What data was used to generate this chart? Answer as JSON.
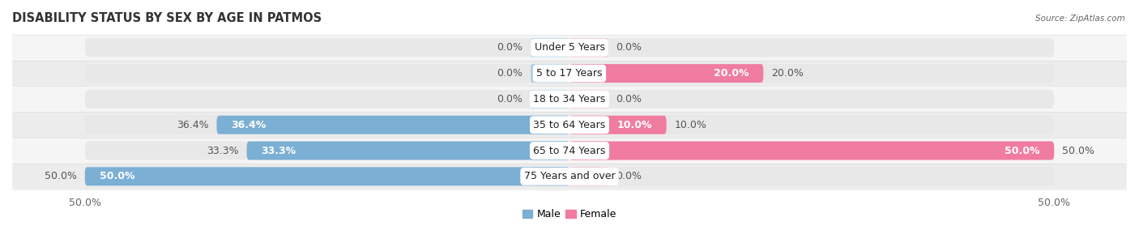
{
  "title": "DISABILITY STATUS BY SEX BY AGE IN PATMOS",
  "source": "Source: ZipAtlas.com",
  "categories": [
    "Under 5 Years",
    "5 to 17 Years",
    "18 to 34 Years",
    "35 to 64 Years",
    "65 to 74 Years",
    "75 Years and over"
  ],
  "male_values": [
    0.0,
    0.0,
    0.0,
    36.4,
    33.3,
    50.0
  ],
  "female_values": [
    0.0,
    20.0,
    0.0,
    10.0,
    50.0,
    0.0
  ],
  "male_color": "#7bafd4",
  "female_color": "#f07ca0",
  "male_stub_color": "#aecde3",
  "female_stub_color": "#f5b8cc",
  "bar_bg_color": "#e8e8e8",
  "max_val": 50.0,
  "bg_color": "#ffffff",
  "bar_height": 0.72,
  "stub_size": 4.0,
  "title_fontsize": 10.5,
  "label_fontsize": 9,
  "cat_fontsize": 9,
  "tick_fontsize": 9,
  "row_bg_even": "#f5f5f5",
  "row_bg_odd": "#ececec"
}
